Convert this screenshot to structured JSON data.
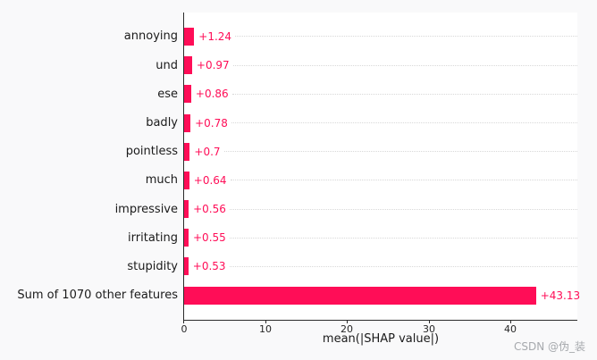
{
  "figure": {
    "background": "#f9f9fa",
    "plot_background": "#ffffff",
    "watermark": "CSDN @伪_装"
  },
  "chart_data": {
    "type": "bar",
    "orientation": "horizontal",
    "title": "",
    "xlabel": "mean(|SHAP value|)",
    "ylabel": "",
    "xlim": [
      0,
      48.2
    ],
    "grid": "dotted horizontal line per row, right of value label",
    "legend": "none",
    "bar_color": "#ff0d57",
    "categories": [
      "annoying",
      "und",
      "ese",
      "badly",
      "pointless",
      "much",
      "impressive",
      "irritating",
      "stupidity",
      "Sum of 1070 other features"
    ],
    "values": [
      1.24,
      0.97,
      0.86,
      0.78,
      0.7,
      0.64,
      0.56,
      0.55,
      0.53,
      43.13
    ],
    "value_labels": [
      "+1.24",
      "+0.97",
      "+0.86",
      "+0.78",
      "+0.7",
      "+0.64",
      "+0.56",
      "+0.55",
      "+0.53",
      "+43.13"
    ],
    "xticks": [
      0,
      10,
      20,
      30,
      40
    ],
    "xtick_labels": [
      "0",
      "10",
      "20",
      "30",
      "40"
    ]
  }
}
